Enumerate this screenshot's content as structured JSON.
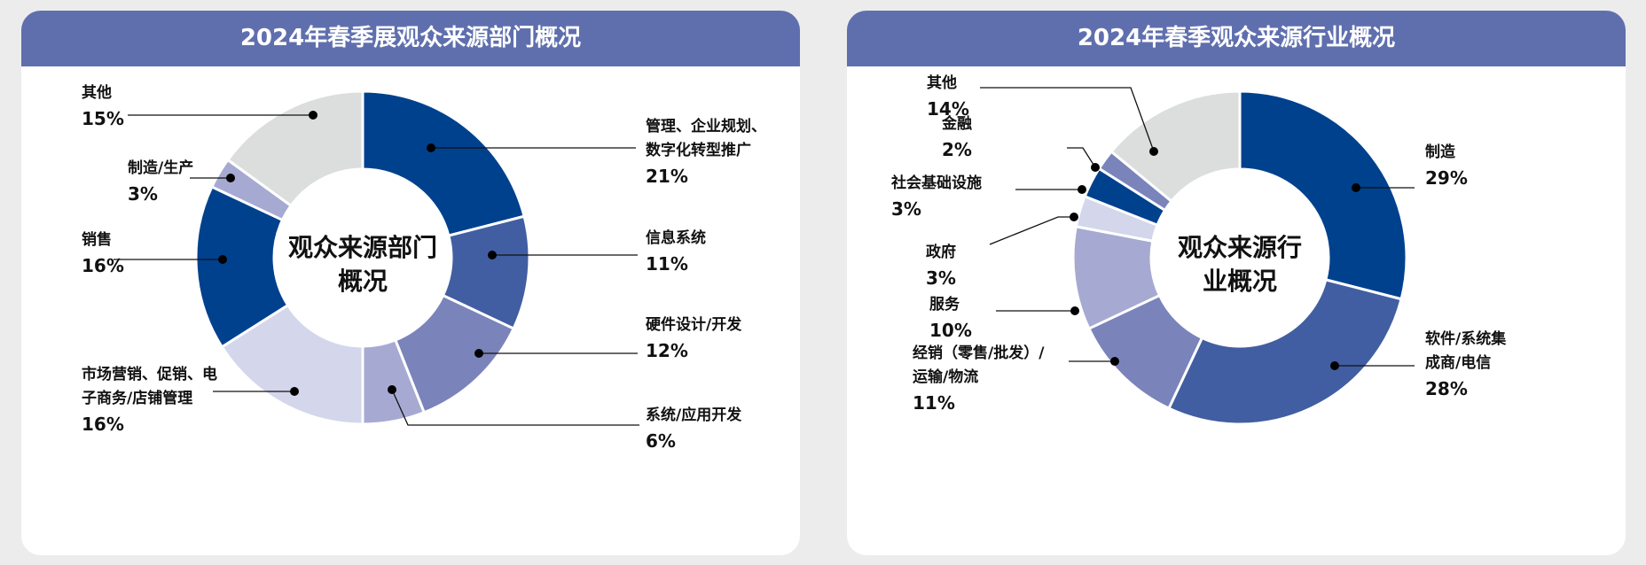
{
  "colors": {
    "header": "#5f6fae",
    "panel_bg": "#ffffff",
    "page_bg": "#ececec"
  },
  "chart_data": [
    {
      "type": "pie",
      "title": "2024年春季展观众来源部门概况",
      "center_label": [
        "观众来源部门",
        "概况"
      ],
      "categories": [
        "管理、企业规划、数字化转型推广",
        "信息系统",
        "硬件设计/开发",
        "系统/应用开发",
        "市场营销、促销、电子商务/店铺管理",
        "销售",
        "制造/生产",
        "其他"
      ],
      "values": [
        21,
        11,
        12,
        6,
        16,
        16,
        3,
        15
      ],
      "unit": "%",
      "label_lines": [
        [
          "管理、企业规划、",
          "数字化转型推广"
        ],
        [
          "信息系统"
        ],
        [
          "硬件设计/开发"
        ],
        [
          "系统/应用开发"
        ],
        [
          "市场营销、促销、电",
          "子商务/店铺管理"
        ],
        [
          "销售"
        ],
        [
          "制造/生产"
        ],
        [
          "其他"
        ]
      ],
      "value_labels": [
        "21%",
        "11%",
        "12%",
        "6%",
        "16%",
        "16%",
        "3%",
        "15%"
      ],
      "slice_colors": [
        "#00418e",
        "#425ea2",
        "#7a84bb",
        "#a6aad2",
        "#d4d6ec",
        "#00418e",
        "#a6aad2",
        "#dcdedd"
      ]
    },
    {
      "type": "pie",
      "title": "2024年春季观众来源行业概况",
      "center_label": [
        "观众来源行",
        "业概况"
      ],
      "categories": [
        "制造",
        "软件/系统集成商/电信",
        "经销（零售/批发）/运输/物流",
        "服务",
        "政府",
        "社会基础设施",
        "金融",
        "其他"
      ],
      "values": [
        29,
        28,
        11,
        10,
        3,
        3,
        2,
        14
      ],
      "unit": "%",
      "label_lines": [
        [
          "制造"
        ],
        [
          "软件/系统集",
          "成商/电信"
        ],
        [
          "经销（零售/批发）/",
          "运输/物流"
        ],
        [
          "服务"
        ],
        [
          "政府"
        ],
        [
          "社会基础设施"
        ],
        [
          "金融"
        ],
        [
          "其他"
        ]
      ],
      "value_labels": [
        "29%",
        "28%",
        "11%",
        "10%",
        "3%",
        "3%",
        "2%",
        "14%"
      ],
      "slice_colors": [
        "#00418e",
        "#425ea2",
        "#7a84bb",
        "#a6aad2",
        "#d4d6ec",
        "#00418e",
        "#7a84bb",
        "#dcdedd"
      ]
    }
  ]
}
